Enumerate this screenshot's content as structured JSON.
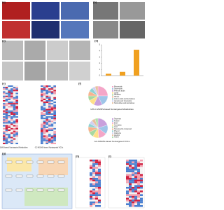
{
  "panel_labels": [
    "(a)",
    "(b)",
    "(c)",
    "(d)",
    "(e)",
    "(f)",
    "(g)",
    "(h)",
    "(i)"
  ],
  "bar_chart": {
    "type": "bar",
    "values": [
      0.3,
      0.6,
      4.2
    ],
    "color": "#f0a020",
    "ylim": [
      0,
      5
    ],
    "yticks": [
      0,
      1,
      2,
      3,
      4,
      5
    ]
  },
  "heatmap_labels": [
    "UPLC-MS/MS-based Nontargeted Metabolites",
    "GC-MS/MS-based Nontargeted VOCs"
  ],
  "pies": [
    {
      "type": "pie",
      "title": "UPLC-MS/MS-based Nontargeted Metabolites",
      "categories": [
        "Flavonoids",
        "Terpenoids",
        "Phenolic acids",
        "Lipids",
        "Alkaloids",
        "Others",
        "Amino acids and derivatives",
        "Lignans and Coumarins",
        "Nucleotides and derivatives"
      ],
      "values": [
        25,
        18,
        14,
        10,
        8,
        8,
        7,
        5,
        5
      ],
      "colors": [
        "#f4a6c8",
        "#9fc5e8",
        "#c9a0dc",
        "#ffe08a",
        "#a8d8a0",
        "#f6b48f",
        "#8fd3d3",
        "#d0d0f0",
        "#e8c0a0"
      ]
    },
    {
      "type": "pie",
      "title": "GC-MS/MS-based Nontargeted VOCs",
      "categories": [
        "Terpenes",
        "Ketone",
        "Ester",
        "Aromatics",
        "Acid",
        "Heterocyclic compound",
        "Phenol",
        "Aldehyde",
        "Alcohol",
        "Amine"
      ],
      "values": [
        20,
        15,
        14,
        10,
        9,
        9,
        6,
        6,
        6,
        5
      ],
      "colors": [
        "#c9a0dc",
        "#9fc5e8",
        "#f4a6c8",
        "#ffe08a",
        "#a8d8a0",
        "#f6b48f",
        "#8fd3d3",
        "#d0d0f0",
        "#e8c0a0",
        "#b0e0b0"
      ]
    }
  ]
}
